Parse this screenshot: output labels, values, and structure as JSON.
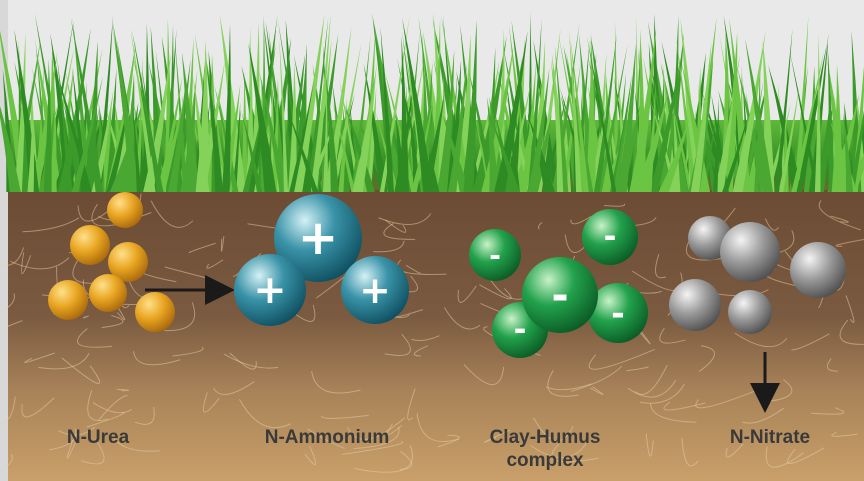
{
  "labels": {
    "urea": "N-Urea",
    "ammonium": "N-Ammonium",
    "clay_humus": {
      "line1": "Clay-Humus",
      "line2": "complex"
    },
    "nitrate": "N-Nitrate"
  },
  "ammonium_charges": [
    "+",
    "+",
    "+"
  ],
  "clay_humus_charges": [
    "-",
    "-",
    "-",
    "-",
    "-"
  ]
}
